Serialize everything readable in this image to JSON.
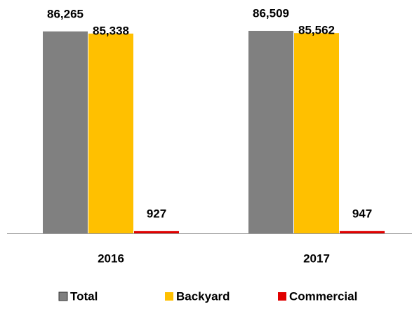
{
  "chart_data": {
    "type": "bar",
    "categories": [
      "2016",
      "2017"
    ],
    "series": [
      {
        "name": "Total",
        "color": "#808080",
        "values": [
          86265,
          86509
        ],
        "value_labels": [
          "86,265",
          "86,509"
        ]
      },
      {
        "name": "Backyard",
        "color": "#ffc000",
        "values": [
          85338,
          85562
        ],
        "value_labels": [
          "85,338",
          "85,562"
        ]
      },
      {
        "name": "Commercial",
        "color": "#e00000",
        "values": [
          927,
          947
        ],
        "value_labels": [
          "927",
          "947"
        ]
      }
    ],
    "legend": "bottom"
  }
}
